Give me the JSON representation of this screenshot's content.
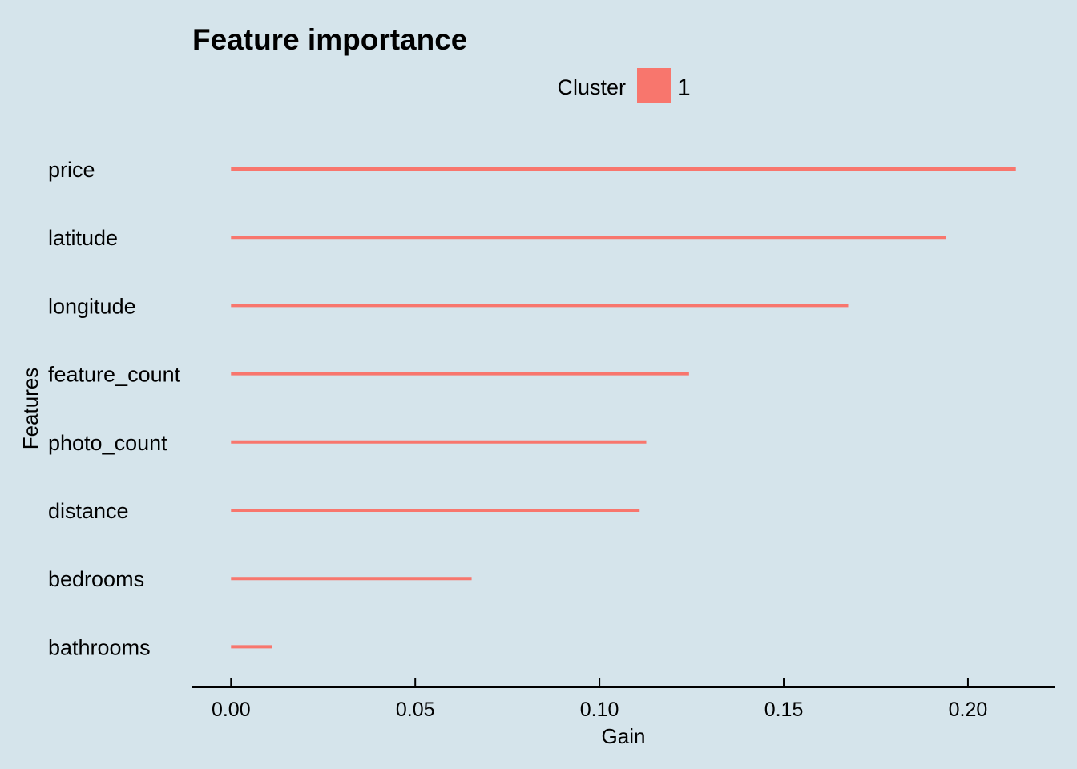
{
  "chart_data": {
    "type": "bar",
    "orientation": "horizontal",
    "title": "Feature importance",
    "xlabel": "Gain",
    "ylabel": "Features",
    "categories": [
      "price",
      "latitude",
      "longitude",
      "feature_count",
      "photo_count",
      "distance",
      "bedrooms",
      "bathrooms"
    ],
    "series": [
      {
        "name": "1",
        "color": "#f8766d",
        "values": [
          0.213,
          0.194,
          0.1675,
          0.1243,
          0.1127,
          0.1109,
          0.0653,
          0.0111
        ]
      }
    ],
    "xlim": [
      -0.0105,
      0.2235
    ],
    "xticks": [
      0.0,
      0.05,
      0.1,
      0.15,
      0.2
    ],
    "xtick_labels": [
      "0.00",
      "0.05",
      "0.10",
      "0.15",
      "0.20"
    ],
    "legend": {
      "title": "Cluster",
      "position": "top"
    },
    "grid": false
  }
}
